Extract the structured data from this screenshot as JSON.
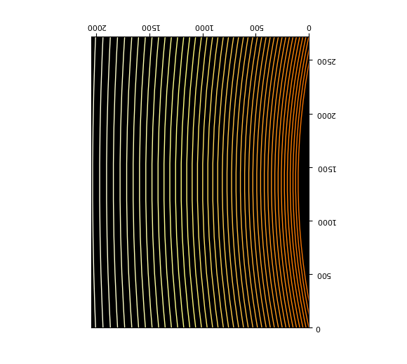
{
  "chart_data": {
    "type": "image",
    "xlim": [
      0,
      2048
    ],
    "ylim": [
      0,
      2720
    ],
    "xticks": [
      0,
      500,
      1000,
      1500,
      2000
    ],
    "yticks": [
      0,
      500,
      1000,
      1500,
      2000,
      2500
    ],
    "y": [
      0,
      1360,
      2720
    ],
    "orders": [
      [
        -53,
        100,
        -53
      ],
      [
        -28,
        124,
        -28
      ],
      [
        -1,
        149,
        -1
      ],
      [
        26,
        175,
        26
      ],
      [
        55,
        202,
        55
      ],
      [
        85,
        230,
        85
      ],
      [
        116,
        259,
        116
      ],
      [
        148,
        289,
        148
      ],
      [
        181,
        320,
        181
      ],
      [
        215,
        352,
        215
      ],
      [
        250,
        385,
        250
      ],
      [
        286,
        419,
        286
      ],
      [
        324,
        454,
        324
      ],
      [
        362,
        490,
        362
      ],
      [
        401,
        527,
        401
      ],
      [
        442,
        565,
        442
      ],
      [
        483,
        604,
        483
      ],
      [
        526,
        644,
        526
      ],
      [
        570,
        685,
        570
      ],
      [
        614,
        727,
        614
      ],
      [
        660,
        770,
        660
      ],
      [
        707,
        814,
        707
      ],
      [
        755,
        859,
        755
      ],
      [
        804,
        905,
        804
      ],
      [
        854,
        952,
        854
      ],
      [
        905,
        1000,
        905
      ],
      [
        957,
        1049,
        957
      ],
      [
        1010,
        1099,
        1010
      ],
      [
        1065,
        1150,
        1065
      ],
      [
        1120,
        1202,
        1120
      ],
      [
        1177,
        1255,
        1177
      ],
      [
        1234,
        1309,
        1234
      ],
      [
        1293,
        1364,
        1293
      ],
      [
        1352,
        1420,
        1352
      ],
      [
        1413,
        1477,
        1413
      ],
      [
        1475,
        1535,
        1475
      ],
      [
        1538,
        1594,
        1538
      ],
      [
        1602,
        1654,
        1602
      ],
      [
        1666,
        1715,
        1666
      ],
      [
        1733,
        1777,
        1733
      ],
      [
        1800,
        1840,
        1800
      ],
      [
        1868,
        1904,
        1868
      ],
      [
        1937,
        1969,
        1937
      ],
      [
        2007,
        2035,
        2007
      ]
    ]
  }
}
